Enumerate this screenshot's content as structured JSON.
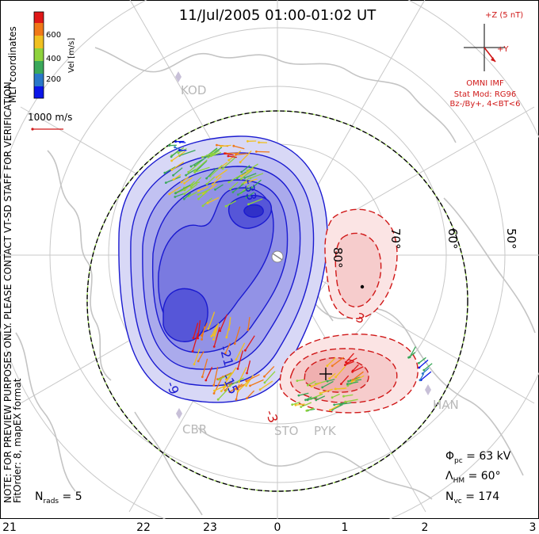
{
  "title": "11/Jul/2005 01:00-01:02 UT",
  "coordinates_label": "MLT coordinates",
  "color_bar": {
    "label": "Vel [m/s]",
    "ticks": [
      "600",
      "400",
      "200"
    ],
    "colors": [
      "#0b16e8",
      "#2a78c8",
      "#3aa85a",
      "#8ed23c",
      "#f0c020",
      "#f07818",
      "#e01818"
    ]
  },
  "velocity_scale_label": "1000 m/s",
  "imf": {
    "z_label": "+Z (5 nT)",
    "y_label": "+Y",
    "source": "OMNI IMF",
    "stat_mod": "Stat Mod: RG96",
    "condition": "Bz-/By+, 4<BT<6"
  },
  "side_note": "NOTE: FOR PREVIEW PURPOSES ONLY. PLEASE CONTACT VT-SD STAFF FOR VERIFICATION.",
  "fit_note": "FitOrder: 8, mapEX format",
  "latitude_labels": [
    "80°",
    "70°",
    "60°",
    "50°"
  ],
  "mlt_ticks": [
    "21",
    "22",
    "23",
    "0",
    "1",
    "2",
    "3"
  ],
  "stations": [
    "KOD",
    "CBR",
    "STO",
    "PYK",
    "HAN"
  ],
  "contour_labels": [
    "-33",
    "-21",
    "-9",
    "-3",
    "-15",
    "3"
  ],
  "stats": {
    "phi_pc": "Φpc = 63 kV",
    "lambda_hm": "ΛHM = 60°",
    "n_vc": "Nvc = 174",
    "n_rads": "Nrads = 5"
  },
  "colors": {
    "negative_cell": "#1a1ad0",
    "positive_cell": "#d01818",
    "grid": "#c8c8c8",
    "coastline": "#c8c8c8",
    "text_accent": "#d01818"
  }
}
